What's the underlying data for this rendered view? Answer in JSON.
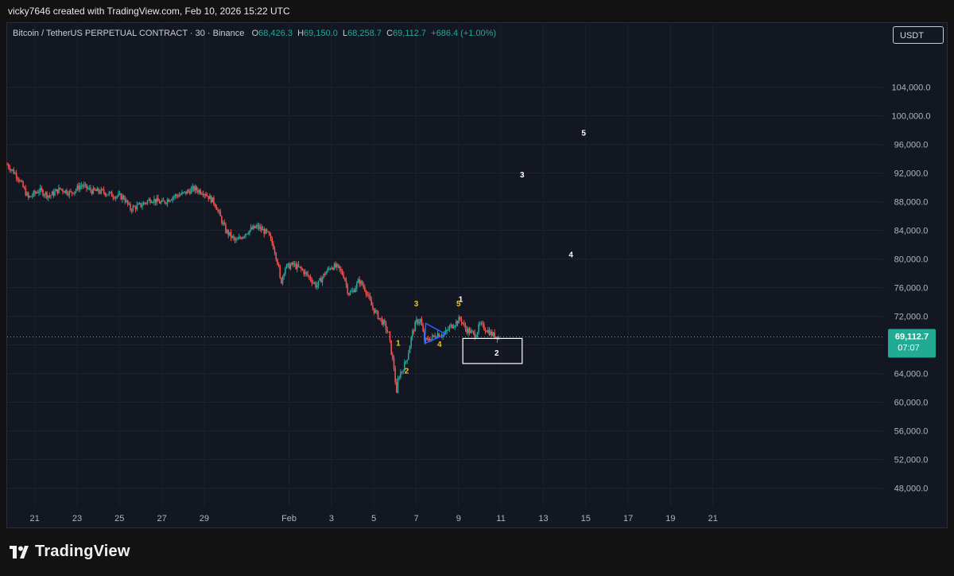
{
  "credit": "vicky7646 created with TradingView.com, Feb 10, 2026 15:22 UTC",
  "legend": {
    "symbol": "Bitcoin / TetherUS PERPETUAL CONTRACT · 30 · Binance",
    "o_label": "O",
    "open": "68,426.3",
    "h_label": "H",
    "high": "69,150.0",
    "l_label": "L",
    "low": "68,258.7",
    "c_label": "C",
    "close": "69,112.7",
    "change": "+686.4 (+1.00%)"
  },
  "currency_button": "USDT",
  "price_tag": {
    "price": "69,112.7",
    "countdown": "07:07"
  },
  "footer_brand": "TradingView",
  "colors": {
    "up": "#26a69a",
    "down": "#ef5350",
    "tag": "#22ab94",
    "wave_yellow": "#f0c419",
    "wave_white": "#ffffff",
    "pattern_blue": "#2962ff"
  },
  "chart_data": {
    "type": "candlestick",
    "symbol": "Bitcoin / TetherUS PERPETUAL CONTRACT",
    "interval": "30",
    "exchange": "Binance",
    "y_ticks": [
      48000,
      52000,
      56000,
      60000,
      64000,
      68000,
      72000,
      76000,
      80000,
      84000,
      88000,
      92000,
      96000,
      100000,
      104000
    ],
    "y_tick_labels": [
      "48,000.0",
      "52,000.0",
      "56,000.0",
      "60,000.0",
      "64,000.0",
      "68,000.0",
      "72,000.0",
      "76,000.0",
      "80,000.0",
      "84,000.0",
      "88,000.0",
      "92,000.0",
      "96,000.0",
      "100,000.0",
      "104,000.0"
    ],
    "ylim": [
      45500,
      109500
    ],
    "x_ticks": [
      "21",
      "23",
      "25",
      "27",
      "29",
      "Feb",
      "3",
      "5",
      "7",
      "9",
      "11",
      "13",
      "15",
      "17",
      "19",
      "21"
    ],
    "x_tick_days": [
      -11,
      -9,
      -7,
      -5,
      -3,
      1,
      3,
      5,
      7,
      9,
      11,
      13,
      15,
      17,
      19,
      21
    ],
    "xlim": [
      -12.3,
      29.0
    ],
    "price_path": [
      [
        -12.3,
        93200
      ],
      [
        -11.8,
        91500
      ],
      [
        -11.3,
        88500
      ],
      [
        -10.8,
        89600
      ],
      [
        -10.3,
        88800
      ],
      [
        -9.8,
        89800
      ],
      [
        -9.3,
        89200
      ],
      [
        -8.8,
        90300
      ],
      [
        -8.3,
        89500
      ],
      [
        -7.8,
        89400
      ],
      [
        -7.3,
        88900
      ],
      [
        -6.8,
        88600
      ],
      [
        -6.5,
        87000
      ],
      [
        -6.0,
        87500
      ],
      [
        -5.5,
        88400
      ],
      [
        -5.0,
        87800
      ],
      [
        -4.5,
        88700
      ],
      [
        -4.0,
        89100
      ],
      [
        -3.5,
        89800
      ],
      [
        -3.0,
        89300
      ],
      [
        -2.5,
        87800
      ],
      [
        -2.2,
        85500
      ],
      [
        -2.0,
        84000
      ],
      [
        -1.5,
        82400
      ],
      [
        -1.0,
        83800
      ],
      [
        -0.5,
        84500
      ],
      [
        0.0,
        83500
      ],
      [
        0.3,
        81500
      ],
      [
        0.5,
        79000
      ],
      [
        0.6,
        76500
      ],
      [
        0.8,
        78800
      ],
      [
        1.2,
        79200
      ],
      [
        1.6,
        78500
      ],
      [
        2.0,
        77300
      ],
      [
        2.3,
        76200
      ],
      [
        2.7,
        78000
      ],
      [
        3.0,
        79000
      ],
      [
        3.3,
        78800
      ],
      [
        3.6,
        77600
      ],
      [
        3.8,
        75200
      ],
      [
        4.0,
        75400
      ],
      [
        4.3,
        77000
      ],
      [
        4.6,
        75800
      ],
      [
        4.9,
        73400
      ],
      [
        5.2,
        72000
      ],
      [
        5.5,
        70800
      ],
      [
        5.7,
        69500
      ],
      [
        5.85,
        66500
      ],
      [
        6.0,
        64000
      ],
      [
        6.05,
        60100
      ],
      [
        6.15,
        63500
      ],
      [
        6.4,
        64800
      ],
      [
        6.6,
        66500
      ],
      [
        6.8,
        69500
      ],
      [
        7.0,
        71200
      ],
      [
        7.2,
        71500
      ],
      [
        7.4,
        68500
      ],
      [
        7.7,
        68900
      ],
      [
        8.0,
        69600
      ],
      [
        8.3,
        69400
      ],
      [
        8.6,
        70500
      ],
      [
        8.9,
        71200
      ],
      [
        9.1,
        71700
      ],
      [
        9.3,
        70300
      ],
      [
        9.6,
        69700
      ],
      [
        9.8,
        69400
      ],
      [
        10.0,
        70800
      ],
      [
        10.3,
        70200
      ],
      [
        10.6,
        69400
      ],
      [
        10.9,
        69112.7
      ]
    ],
    "last_price": 69112.7,
    "wave_labels": [
      {
        "text": "1",
        "day": 6.15,
        "price": 67900,
        "color": "yellow"
      },
      {
        "text": "2",
        "day": 6.55,
        "price": 64000,
        "color": "yellow"
      },
      {
        "text": "3",
        "day": 7.0,
        "price": 73400,
        "color": "yellow"
      },
      {
        "text": "4",
        "day": 8.1,
        "price": 67700,
        "color": "yellow"
      },
      {
        "text": "5",
        "day": 9.0,
        "price": 73400,
        "color": "yellow"
      },
      {
        "text": "1",
        "day": 9.1,
        "price": 74000,
        "color": "white"
      },
      {
        "text": "2",
        "day": 10.8,
        "price": 66500,
        "color": "white"
      },
      {
        "text": "3",
        "day": 12.0,
        "price": 91400,
        "color": "white"
      },
      {
        "text": "4",
        "day": 14.3,
        "price": 80200,
        "color": "white"
      },
      {
        "text": "5",
        "day": 14.9,
        "price": 97200,
        "color": "white"
      }
    ],
    "triangle": {
      "points": [
        [
          7.4,
          68200
        ],
        [
          7.45,
          71000
        ],
        [
          8.4,
          69500
        ]
      ]
    },
    "target_box": {
      "day_from": 9.2,
      "day_to": 12.0,
      "price_from": 65400,
      "price_to": 68900
    },
    "grid": true,
    "axis_side": "right"
  }
}
